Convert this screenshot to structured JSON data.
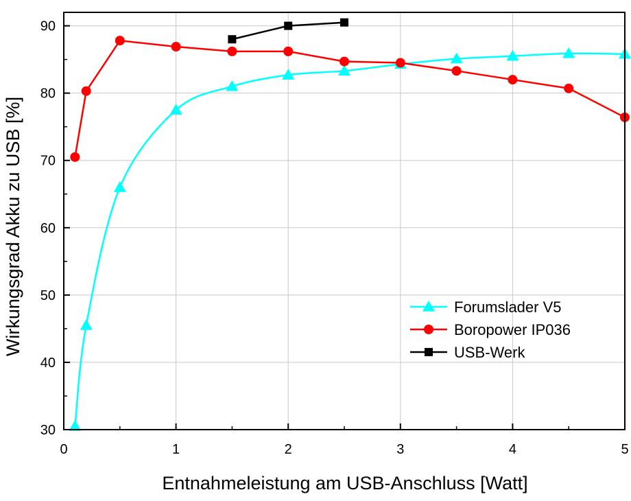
{
  "chart_data": {
    "type": "line",
    "xlabel": "Entnahmeleistung am USB-Anschluss [Watt]",
    "ylabel": "Wirkungsgrad Akku zu USB [%]",
    "xlim": [
      0,
      5
    ],
    "ylim": [
      30,
      92
    ],
    "x_ticks": [
      0,
      1,
      2,
      3,
      4,
      5
    ],
    "y_ticks": [
      30,
      40,
      50,
      60,
      70,
      80,
      90
    ],
    "x_tick_labels": [
      "0",
      "1",
      "2",
      "3",
      "4",
      "5"
    ],
    "y_tick_labels": [
      "30",
      "40",
      "50",
      "60",
      "70",
      "80",
      "90"
    ],
    "grid": true,
    "legend_position": "bottom-right",
    "series": [
      {
        "name": "Forumslader V5",
        "color": "#00ffff",
        "marker": "triangle",
        "smooth": true,
        "x": [
          0.1,
          0.2,
          0.5,
          1,
          1.5,
          2,
          2.5,
          3,
          3.5,
          4,
          4.5,
          5
        ],
        "y": [
          30.5,
          45.5,
          66,
          77.5,
          81,
          82.7,
          83.3,
          84.3,
          85.1,
          85.5,
          85.9,
          85.8
        ]
      },
      {
        "name": "Boropower IP036",
        "color": "#ff0000",
        "marker": "circle",
        "smooth": false,
        "x": [
          0.1,
          0.2,
          0.5,
          1,
          1.5,
          2,
          2.5,
          3,
          3.5,
          4,
          4.5,
          5
        ],
        "y": [
          70.5,
          80.3,
          87.8,
          86.9,
          86.2,
          86.2,
          84.7,
          84.5,
          83.3,
          82,
          80.7,
          76.4
        ]
      },
      {
        "name": "USB-Werk",
        "color": "#000000",
        "marker": "square",
        "smooth": false,
        "x": [
          1.5,
          2,
          2.5
        ],
        "y": [
          88,
          90,
          90.5
        ]
      }
    ]
  }
}
